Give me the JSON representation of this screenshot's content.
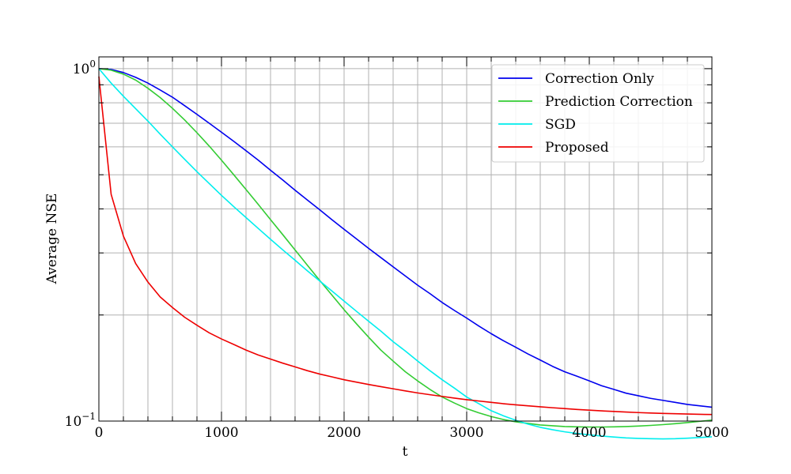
{
  "chart_data": {
    "type": "line",
    "title": "",
    "xlabel": "t",
    "ylabel": "Average NSE",
    "xlim": [
      0,
      5000
    ],
    "ylim": [
      0.1,
      1.08
    ],
    "yscale": "log",
    "grid": true,
    "legend_position": "top-right",
    "x_ticks": [
      0,
      1000,
      2000,
      3000,
      4000,
      5000
    ],
    "x_tick_labels": [
      "0",
      "1000",
      "2000",
      "3000",
      "4000",
      "5000"
    ],
    "y_tick_labels": [
      {
        "base": "10",
        "exponent": "0",
        "value": 1.0
      },
      {
        "base": "10",
        "exponent": "−1",
        "value": 0.1
      }
    ],
    "x": [
      0,
      100,
      200,
      300,
      400,
      500,
      600,
      700,
      800,
      900,
      1000,
      1100,
      1200,
      1300,
      1400,
      1500,
      1600,
      1700,
      1800,
      1900,
      2000,
      2100,
      2200,
      2300,
      2400,
      2500,
      2600,
      2700,
      2800,
      2900,
      3000,
      3100,
      3200,
      3300,
      3400,
      3500,
      3600,
      3700,
      3800,
      3900,
      4000,
      4100,
      4200,
      4300,
      4400,
      4500,
      4600,
      4700,
      4800,
      4900,
      5000
    ],
    "series": [
      {
        "name": "Correction Only",
        "color": "#0000ee",
        "values": [
          1.0,
          0.995,
          0.975,
          0.945,
          0.91,
          0.87,
          0.83,
          0.785,
          0.742,
          0.7,
          0.66,
          0.622,
          0.585,
          0.55,
          0.515,
          0.483,
          0.452,
          0.424,
          0.398,
          0.373,
          0.35,
          0.329,
          0.309,
          0.291,
          0.274,
          0.258,
          0.243,
          0.23,
          0.217,
          0.206,
          0.196,
          0.186,
          0.177,
          0.169,
          0.162,
          0.155,
          0.149,
          0.143,
          0.138,
          0.134,
          0.13,
          0.126,
          0.123,
          0.12,
          0.118,
          0.116,
          0.1145,
          0.113,
          0.1115,
          0.1105,
          0.1095
        ]
      },
      {
        "name": "Prediction Correction",
        "color": "#33cc33",
        "values": [
          1.0,
          0.99,
          0.965,
          0.928,
          0.88,
          0.828,
          0.772,
          0.715,
          0.658,
          0.603,
          0.55,
          0.5,
          0.454,
          0.412,
          0.373,
          0.338,
          0.306,
          0.277,
          0.251,
          0.228,
          0.207,
          0.189,
          0.173,
          0.159,
          0.148,
          0.138,
          0.13,
          0.123,
          0.117,
          0.1125,
          0.1085,
          0.1055,
          0.103,
          0.101,
          0.0995,
          0.0985,
          0.0975,
          0.097,
          0.0965,
          0.0963,
          0.0962,
          0.0962,
          0.0963,
          0.0965,
          0.0968,
          0.0972,
          0.0977,
          0.0983,
          0.099,
          0.0998,
          0.1006
        ]
      },
      {
        "name": "SGD",
        "color": "#00eeee",
        "values": [
          1.0,
          0.91,
          0.835,
          0.77,
          0.71,
          0.652,
          0.6,
          0.553,
          0.51,
          0.472,
          0.437,
          0.406,
          0.378,
          0.352,
          0.328,
          0.306,
          0.286,
          0.267,
          0.25,
          0.234,
          0.219,
          0.205,
          0.192,
          0.18,
          0.168,
          0.158,
          0.148,
          0.139,
          0.131,
          0.124,
          0.117,
          0.112,
          0.107,
          0.1035,
          0.1005,
          0.098,
          0.096,
          0.0945,
          0.0932,
          0.0922,
          0.0914,
          0.0907,
          0.0901,
          0.0896,
          0.0893,
          0.0891,
          0.089,
          0.0891,
          0.0894,
          0.0898,
          0.0902
        ]
      },
      {
        "name": "Proposed",
        "color": "#ee0000",
        "values": [
          0.95,
          0.44,
          0.335,
          0.28,
          0.248,
          0.225,
          0.21,
          0.197,
          0.187,
          0.178,
          0.171,
          0.165,
          0.159,
          0.154,
          0.15,
          0.146,
          0.1425,
          0.139,
          0.136,
          0.1335,
          0.131,
          0.129,
          0.127,
          0.1252,
          0.1235,
          0.1218,
          0.1202,
          0.1188,
          0.1175,
          0.1162,
          0.115,
          0.114,
          0.113,
          0.112,
          0.1112,
          0.1105,
          0.1098,
          0.1091,
          0.1085,
          0.1079,
          0.1074,
          0.1069,
          0.1065,
          0.1061,
          0.1057,
          0.1054,
          0.1051,
          0.1049,
          0.1047,
          0.1045,
          0.1044
        ]
      }
    ]
  }
}
